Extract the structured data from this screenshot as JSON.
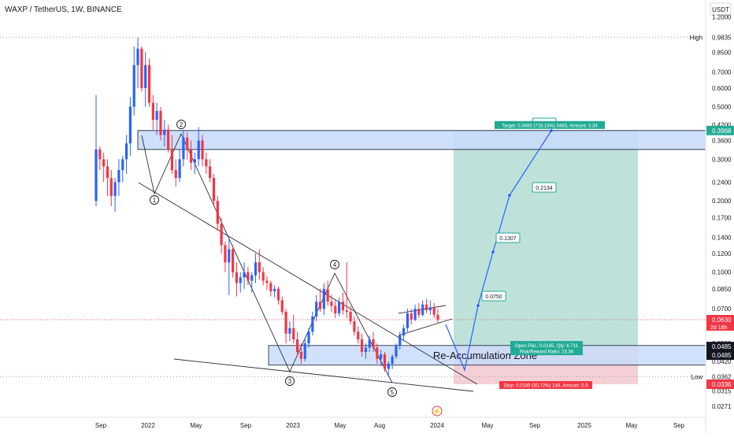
{
  "header": {
    "symbol_line": "WAXP / TetherUS, 1W, BINANCE"
  },
  "colors": {
    "up": "#2962ff",
    "down": "#f23645",
    "zone_fill": "#c9dcfb",
    "zone_stroke": "#1e2a3a",
    "target_fill": "#a8d8cd",
    "stop_fill": "#f2c7cf",
    "projection": "#2962ff",
    "trendline": "#2a2e39",
    "label_green": "#22ab94",
    "label_red": "#f23645"
  },
  "chart_data": {
    "type": "candlestick",
    "scale": "log",
    "currency": "USDT",
    "ylim": [
      0.0255,
      1.25
    ],
    "x_ticks": [
      "Sep",
      "2022",
      "May",
      "Sep",
      "2023",
      "May",
      "Aug",
      "2024",
      "May",
      "Sep",
      "2025",
      "May",
      "Sep"
    ],
    "y_ticks": [
      1.2,
      0.9835,
      0.85,
      0.7,
      0.6,
      0.5,
      0.42,
      0.36,
      0.3,
      0.24,
      0.2,
      0.17,
      0.14,
      0.12,
      0.1,
      0.085,
      0.07,
      0.06,
      0.05,
      0.042,
      0.0362,
      0.0315,
      0.0271
    ],
    "y_tick_labels": [
      "1.2000",
      "0.9835",
      "0.8500",
      "0.7000",
      "0.6000",
      "0.5000",
      "0.4200",
      "0.3600",
      "0.3000",
      "0.2400",
      "0.2000",
      "0.1700",
      "0.1400",
      "0.1200",
      "0.1000",
      "0.0850",
      "0.0700",
      "0.0600",
      "0.0500",
      "0.0420",
      "0.0362",
      "0.0315",
      "0.0271"
    ],
    "high": {
      "label": "High",
      "value": "0.9835",
      "v": 0.9835
    },
    "low": {
      "label": "Low",
      "value": "0.0362",
      "v": 0.0362
    },
    "price_tags": [
      {
        "text": "0.3968",
        "v": 0.3968,
        "color": "#22ab94"
      },
      {
        "text": "0.0630",
        "v": 0.063,
        "color": "#f23645",
        "sub": "2d 18h"
      },
      {
        "text": "0.0485",
        "v": 0.0485,
        "color": "#131722"
      },
      {
        "text": "0.0485",
        "v": 0.0485,
        "color": "#131722"
      },
      {
        "text": "0.0336",
        "v": 0.0336,
        "color": "#f23645"
      }
    ],
    "re_accumulation_zone": {
      "label": "Re-Accumulation Zone",
      "from": 0.0405,
      "to": 0.049
    },
    "resistance_zone": {
      "from": 0.33,
      "to": 0.3968
    },
    "position": {
      "target_label": "Target: 0.3483 (718.14%) 3483, Amount: 3.34",
      "open_label": "Open P&L: 0.0145, Qty: 6.711",
      "ratio_label": "Risk/Reward Ratio: 23.38",
      "stop_label": "Stop: 0.0149 (30.72%) 149, Amount: 0.9",
      "target": 0.3968,
      "entry": 0.0485,
      "stop": 0.0336
    },
    "projection_targets": [
      {
        "text": "0.0750",
        "v": 0.075
      },
      {
        "text": "0.1307",
        "v": 0.1307
      },
      {
        "text": "0.2134",
        "v": 0.2134
      },
      {
        "text": "0.3929",
        "v": 0.3929
      }
    ],
    "wave_labels": [
      "1",
      "2",
      "3",
      "4",
      "5"
    ],
    "candles": [
      [
        0.2,
        0.56,
        0.19,
        0.33
      ],
      [
        0.33,
        0.34,
        0.27,
        0.3
      ],
      [
        0.3,
        0.32,
        0.24,
        0.28
      ],
      [
        0.28,
        0.3,
        0.21,
        0.25
      ],
      [
        0.25,
        0.27,
        0.19,
        0.21
      ],
      [
        0.21,
        0.25,
        0.18,
        0.24
      ],
      [
        0.24,
        0.3,
        0.21,
        0.27
      ],
      [
        0.27,
        0.31,
        0.24,
        0.3
      ],
      [
        0.3,
        0.38,
        0.26,
        0.35
      ],
      [
        0.35,
        0.55,
        0.31,
        0.5
      ],
      [
        0.5,
        0.9,
        0.46,
        0.75
      ],
      [
        0.75,
        0.98,
        0.6,
        0.88
      ],
      [
        0.88,
        0.9,
        0.58,
        0.6
      ],
      [
        0.6,
        0.85,
        0.5,
        0.75
      ],
      [
        0.75,
        0.8,
        0.5,
        0.52
      ],
      [
        0.52,
        0.56,
        0.4,
        0.44
      ],
      [
        0.44,
        0.52,
        0.38,
        0.48
      ],
      [
        0.48,
        0.5,
        0.36,
        0.38
      ],
      [
        0.38,
        0.44,
        0.34,
        0.4
      ],
      [
        0.4,
        0.42,
        0.32,
        0.33
      ],
      [
        0.33,
        0.38,
        0.26,
        0.27
      ],
      [
        0.27,
        0.3,
        0.23,
        0.25
      ],
      [
        0.25,
        0.33,
        0.24,
        0.3
      ],
      [
        0.3,
        0.4,
        0.28,
        0.37
      ],
      [
        0.37,
        0.39,
        0.3,
        0.33
      ],
      [
        0.33,
        0.36,
        0.27,
        0.29
      ],
      [
        0.29,
        0.32,
        0.26,
        0.3
      ],
      [
        0.3,
        0.41,
        0.28,
        0.36
      ],
      [
        0.36,
        0.38,
        0.28,
        0.3
      ],
      [
        0.3,
        0.32,
        0.26,
        0.28
      ],
      [
        0.28,
        0.3,
        0.24,
        0.25
      ],
      [
        0.25,
        0.26,
        0.19,
        0.2
      ],
      [
        0.2,
        0.21,
        0.15,
        0.16
      ],
      [
        0.16,
        0.17,
        0.12,
        0.13
      ],
      [
        0.13,
        0.135,
        0.1,
        0.11
      ],
      [
        0.11,
        0.14,
        0.08,
        0.125
      ],
      [
        0.125,
        0.13,
        0.095,
        0.1
      ],
      [
        0.1,
        0.11,
        0.079,
        0.09
      ],
      [
        0.09,
        0.1,
        0.082,
        0.095
      ],
      [
        0.095,
        0.11,
        0.085,
        0.1
      ],
      [
        0.1,
        0.105,
        0.088,
        0.092
      ],
      [
        0.092,
        0.1,
        0.082,
        0.097
      ],
      [
        0.097,
        0.12,
        0.09,
        0.11
      ],
      [
        0.11,
        0.125,
        0.093,
        0.1
      ],
      [
        0.1,
        0.105,
        0.088,
        0.092
      ],
      [
        0.092,
        0.096,
        0.084,
        0.09
      ],
      [
        0.09,
        0.092,
        0.079,
        0.083
      ],
      [
        0.083,
        0.088,
        0.078,
        0.085
      ],
      [
        0.085,
        0.087,
        0.073,
        0.076
      ],
      [
        0.076,
        0.079,
        0.066,
        0.068
      ],
      [
        0.068,
        0.07,
        0.05,
        0.055
      ],
      [
        0.055,
        0.062,
        0.051,
        0.058
      ],
      [
        0.058,
        0.066,
        0.05,
        0.052
      ],
      [
        0.052,
        0.056,
        0.044,
        0.046
      ],
      [
        0.046,
        0.05,
        0.041,
        0.043
      ],
      [
        0.043,
        0.052,
        0.042,
        0.05
      ],
      [
        0.05,
        0.058,
        0.048,
        0.056
      ],
      [
        0.056,
        0.068,
        0.054,
        0.065
      ],
      [
        0.065,
        0.08,
        0.062,
        0.075
      ],
      [
        0.075,
        0.085,
        0.068,
        0.07
      ],
      [
        0.07,
        0.09,
        0.066,
        0.085
      ],
      [
        0.085,
        0.092,
        0.072,
        0.075
      ],
      [
        0.075,
        0.08,
        0.068,
        0.072
      ],
      [
        0.072,
        0.076,
        0.064,
        0.067
      ],
      [
        0.067,
        0.078,
        0.065,
        0.075
      ],
      [
        0.075,
        0.082,
        0.066,
        0.069
      ],
      [
        0.069,
        0.11,
        0.064,
        0.068
      ],
      [
        0.068,
        0.072,
        0.06,
        0.062
      ],
      [
        0.062,
        0.065,
        0.054,
        0.056
      ],
      [
        0.056,
        0.059,
        0.05,
        0.052
      ],
      [
        0.052,
        0.055,
        0.044,
        0.046
      ],
      [
        0.046,
        0.05,
        0.043,
        0.048
      ],
      [
        0.048,
        0.054,
        0.046,
        0.052
      ],
      [
        0.052,
        0.056,
        0.046,
        0.048
      ],
      [
        0.048,
        0.05,
        0.041,
        0.043
      ],
      [
        0.043,
        0.047,
        0.04,
        0.045
      ],
      [
        0.045,
        0.046,
        0.038,
        0.039
      ],
      [
        0.039,
        0.042,
        0.0362,
        0.041
      ],
      [
        0.041,
        0.045,
        0.039,
        0.044
      ],
      [
        0.044,
        0.05,
        0.043,
        0.049
      ],
      [
        0.049,
        0.056,
        0.047,
        0.054
      ],
      [
        0.054,
        0.06,
        0.051,
        0.058
      ],
      [
        0.058,
        0.07,
        0.056,
        0.067
      ],
      [
        0.067,
        0.07,
        0.06,
        0.063
      ],
      [
        0.063,
        0.073,
        0.062,
        0.07
      ],
      [
        0.07,
        0.074,
        0.064,
        0.066
      ],
      [
        0.066,
        0.076,
        0.065,
        0.073
      ],
      [
        0.073,
        0.077,
        0.067,
        0.069
      ],
      [
        0.069,
        0.076,
        0.066,
        0.071
      ],
      [
        0.071,
        0.074,
        0.064,
        0.066
      ],
      [
        0.066,
        0.07,
        0.061,
        0.063
      ]
    ]
  }
}
